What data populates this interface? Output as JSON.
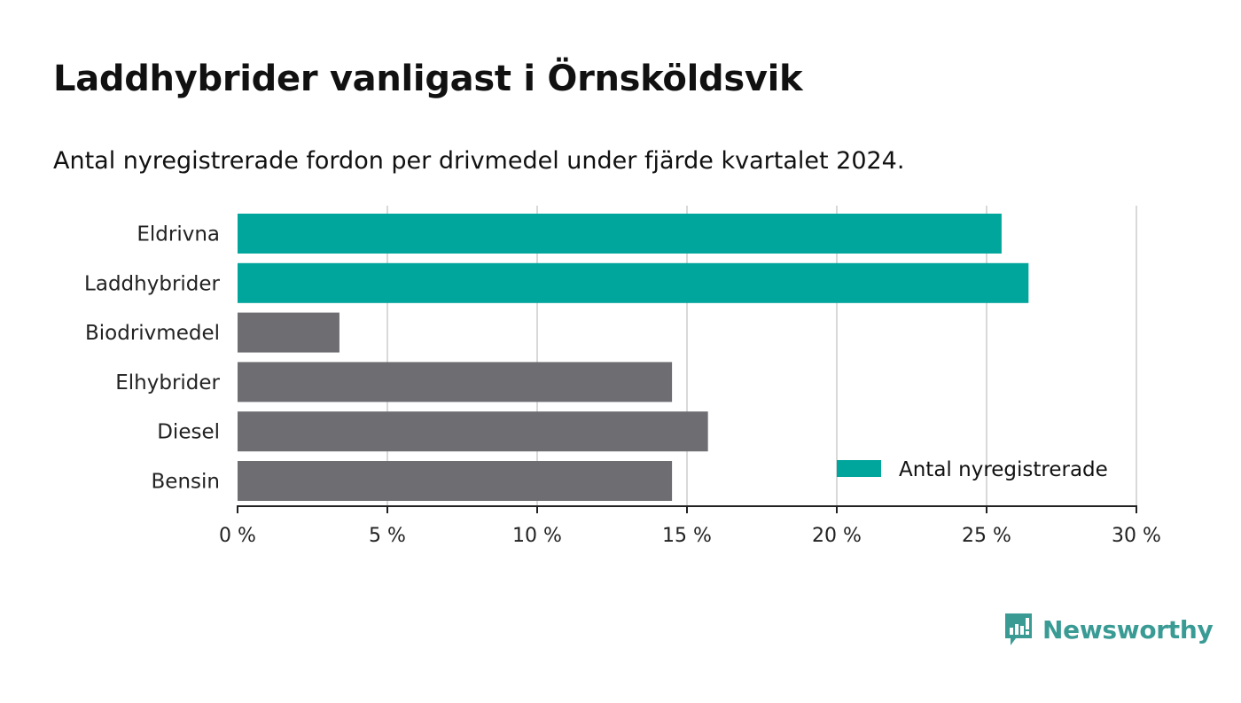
{
  "header": {
    "title": "Laddhybrider vanligast i Örnsköldsvik",
    "subtitle": "Antal nyregistrerade fordon per drivmedel under fjärde kvartalet 2024."
  },
  "brand": {
    "name": "Newsworthy",
    "icon": "newsworthy-logo-icon",
    "color": "#3a9b95"
  },
  "chart_data": {
    "type": "bar",
    "orientation": "horizontal",
    "title": "Laddhybrider vanligast i Örnsköldsvik",
    "subtitle": "Antal nyregistrerade fordon per drivmedel under fjärde kvartalet 2024.",
    "categories": [
      "Eldrivna",
      "Laddhybrider",
      "Biodrivmedel",
      "Elhybrider",
      "Diesel",
      "Bensin"
    ],
    "values": [
      25.5,
      26.4,
      3.4,
      14.5,
      15.7,
      14.5
    ],
    "highlighted": [
      true,
      true,
      false,
      false,
      false,
      false
    ],
    "colors": {
      "highlight": "#00a59b",
      "default": "#6e6d72",
      "grid": "#d9d9d9",
      "axis": "#222222"
    },
    "xlim": [
      0,
      30
    ],
    "xticks": [
      0,
      5,
      10,
      15,
      20,
      25,
      30
    ],
    "xtick_labels": [
      "0 %",
      "5 %",
      "10 %",
      "15 %",
      "20 %",
      "25 %",
      "30 %"
    ],
    "xlabel": "",
    "ylabel": "",
    "grid": true,
    "legend": {
      "label": "Antal nyregistrerade",
      "position": "bottom-right"
    }
  }
}
